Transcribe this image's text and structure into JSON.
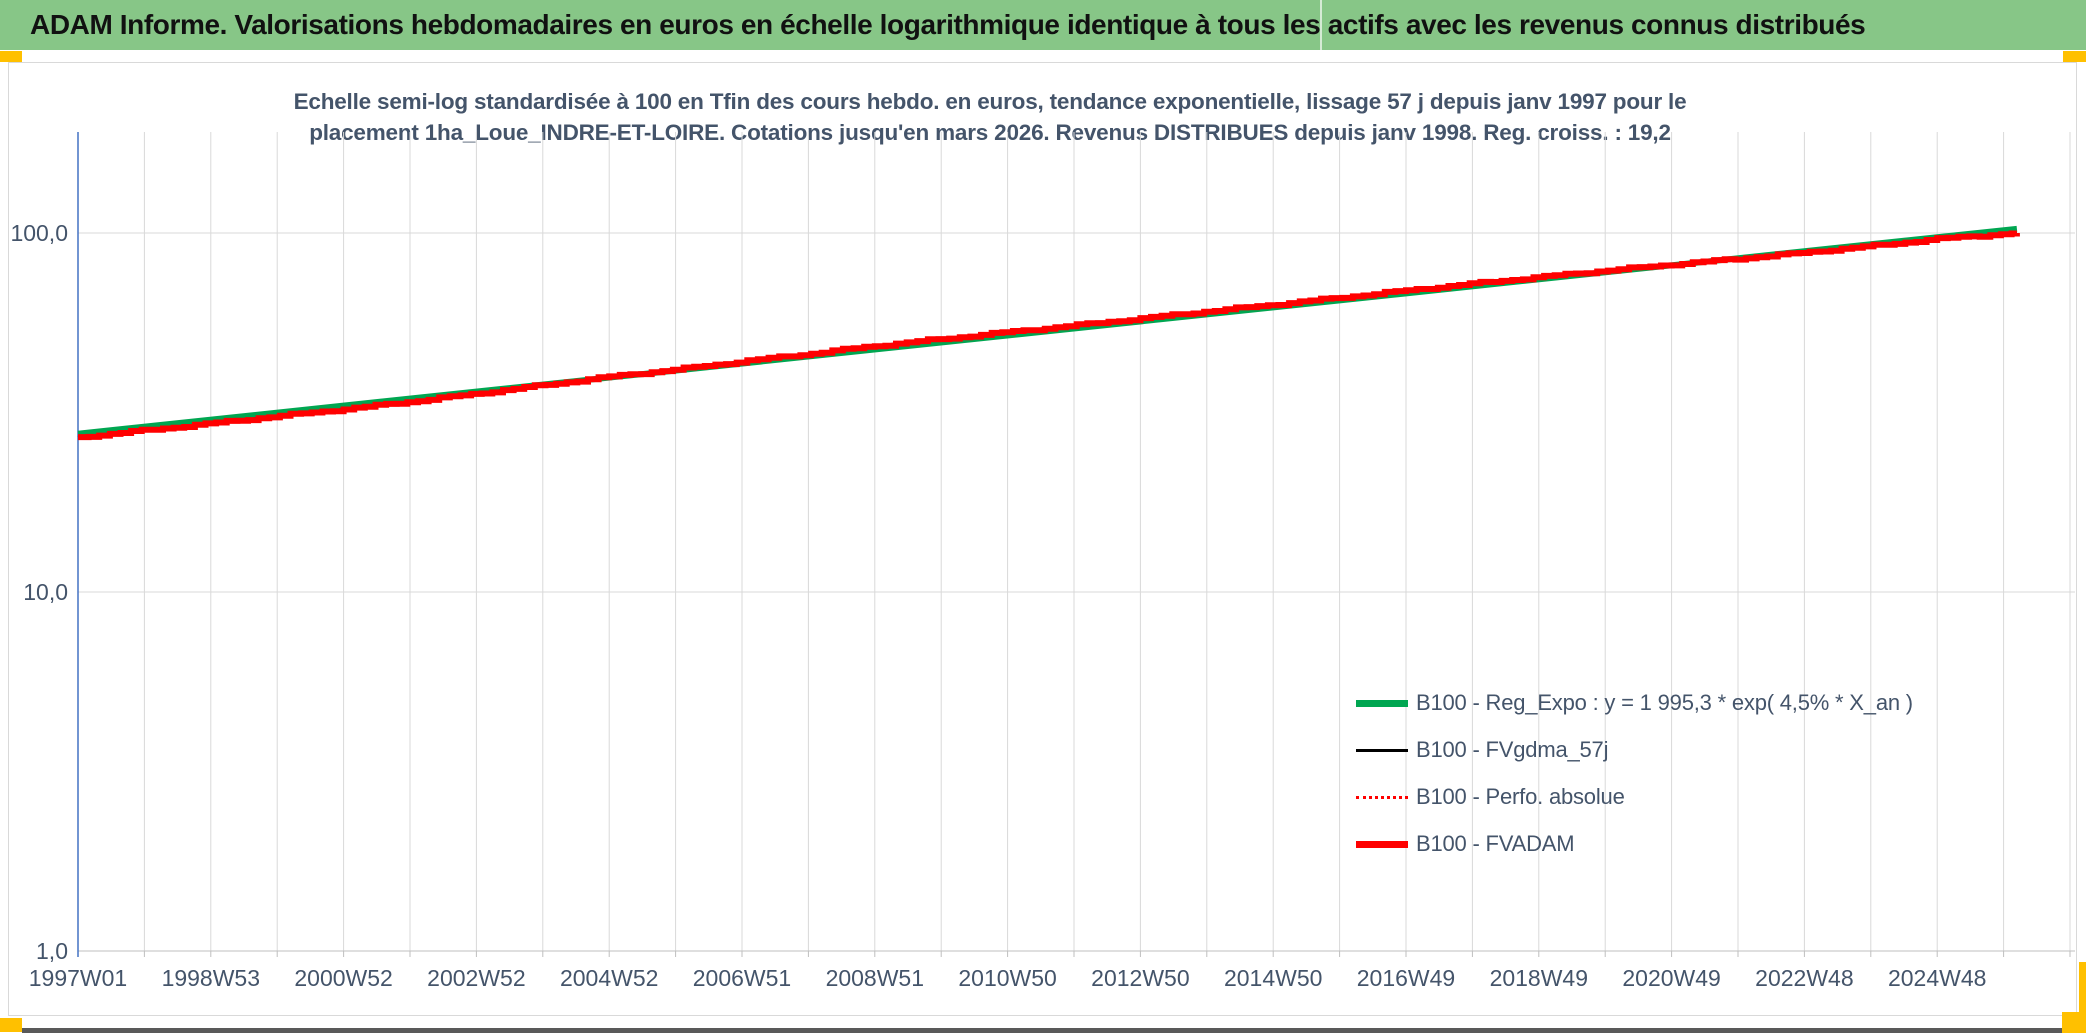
{
  "header": {
    "title": "ADAM Informe. Valorisations hebdomadaires en euros en échelle logarithmique identique à tous les actifs avec les revenus connus distribués",
    "background_color": "#87C687",
    "accent_color": "#FFC000"
  },
  "chart_data": {
    "type": "line",
    "title_lines": [
      "Echelle semi-log standardisée à 100 en Tfin des cours hebdo. en euros, tendance exponentielle, lissage 57 j depuis janv 1997 pour le",
      "placement 1ha_Loue_INDRE-ET-LOIRE. Cotations jusqu'en mars 2026. Revenus DISTRIBUES depuis janv 1998. Reg. croiss. : 19,2"
    ],
    "y_axis": {
      "scale": "log10",
      "range": [
        1,
        196
      ],
      "ticks": [
        {
          "label": "1,0",
          "value": 1
        },
        {
          "label": "10,0",
          "value": 10
        },
        {
          "label": "100,0",
          "value": 100
        }
      ],
      "axis_color": "#4472C4",
      "gridline_color": "#D9D9D9"
    },
    "x_axis": {
      "range_years": [
        1997,
        2027.1
      ],
      "gridline_every_years": 1,
      "ticks": [
        {
          "label": "1997W01",
          "year": 1997
        },
        {
          "label": "1998W53",
          "year": 1999
        },
        {
          "label": "2000W52",
          "year": 2001
        },
        {
          "label": "2002W52",
          "year": 2003
        },
        {
          "label": "2004W52",
          "year": 2005
        },
        {
          "label": "2006W51",
          "year": 2007
        },
        {
          "label": "2008W51",
          "year": 2009
        },
        {
          "label": "2010W50",
          "year": 2011
        },
        {
          "label": "2012W50",
          "year": 2013
        },
        {
          "label": "2014W50",
          "year": 2015
        },
        {
          "label": "2016W49",
          "year": 2017
        },
        {
          "label": "2018W49",
          "year": 2019
        },
        {
          "label": "2020W49",
          "year": 2021
        },
        {
          "label": "2022W48",
          "year": 2023
        },
        {
          "label": "2024W48",
          "year": 2025
        }
      ]
    },
    "series": [
      {
        "name": "B100 - Reg_Expo : y = 1 995,3 * exp( 4,5% *  X_an )",
        "color": "#00A651",
        "stroke_width": 6,
        "line_style": "solid",
        "shape": "straight",
        "years": [
          1997.0,
          2026.2
        ],
        "values": [
          27.6,
          102.7
        ]
      },
      {
        "name": "B100 - FVgdma_57j",
        "color": "#000000",
        "stroke_width": 2.5,
        "line_style": "solid",
        "shape": "smooth",
        "years": [
          1997,
          1998,
          1999,
          2000,
          2001,
          2002,
          2003,
          2004,
          2005,
          2006,
          2007,
          2008,
          2009,
          2010,
          2011,
          2012,
          2013,
          2014,
          2015,
          2016,
          2017,
          2018,
          2019,
          2020,
          2021,
          2022,
          2023,
          2024,
          2025,
          2026.2
        ],
        "values": [
          27.0,
          28.2,
          29.5,
          30.9,
          32.3,
          33.9,
          35.7,
          37.7,
          39.8,
          41.7,
          43.9,
          46.1,
          48.5,
          50.7,
          53.0,
          55.3,
          57.8,
          60.5,
          63.2,
          66.1,
          69.2,
          72.3,
          75.4,
          78.6,
          81.7,
          84.8,
          88.2,
          92.0,
          96.3,
          100.0
        ]
      },
      {
        "name": "B100 - Perfo. absolue",
        "color": "#FF0000",
        "stroke_width": 2,
        "line_style": "dotted",
        "shape": "smooth",
        "years": [
          1997,
          1998,
          1999,
          2000,
          2001,
          2002,
          2003,
          2004,
          2005,
          2006,
          2007,
          2008,
          2009,
          2010,
          2011,
          2012,
          2013,
          2014,
          2015,
          2016,
          2017,
          2018,
          2019,
          2020,
          2021,
          2022,
          2023,
          2024,
          2025,
          2026.2
        ],
        "values": [
          27.0,
          28.2,
          29.5,
          30.9,
          32.3,
          33.9,
          35.7,
          37.7,
          39.8,
          41.7,
          43.9,
          46.1,
          48.5,
          50.7,
          53.0,
          55.3,
          57.8,
          60.5,
          63.2,
          66.1,
          69.2,
          72.3,
          75.4,
          78.6,
          81.7,
          84.8,
          88.2,
          92.0,
          96.3,
          100.0
        ]
      },
      {
        "name": "B100 - FVADAM",
        "color": "#FF0000",
        "stroke_width": 6,
        "line_style": "solid",
        "shape": "steps",
        "years": [
          1997,
          1998,
          1999,
          2000,
          2001,
          2002,
          2003,
          2004,
          2005,
          2006,
          2007,
          2008,
          2009,
          2010,
          2011,
          2012,
          2013,
          2014,
          2015,
          2016,
          2017,
          2018,
          2019,
          2020,
          2021,
          2022,
          2023,
          2024,
          2025,
          2026.2
        ],
        "values": [
          27.0,
          28.2,
          29.5,
          30.9,
          32.3,
          33.9,
          35.7,
          37.7,
          39.8,
          41.7,
          43.9,
          46.1,
          48.5,
          50.7,
          53.0,
          55.3,
          57.8,
          60.5,
          63.2,
          66.1,
          69.2,
          72.3,
          75.4,
          78.6,
          81.7,
          84.8,
          88.2,
          92.0,
          96.3,
          100.0
        ]
      }
    ]
  },
  "footer": {
    "bar_color": "#595959"
  }
}
